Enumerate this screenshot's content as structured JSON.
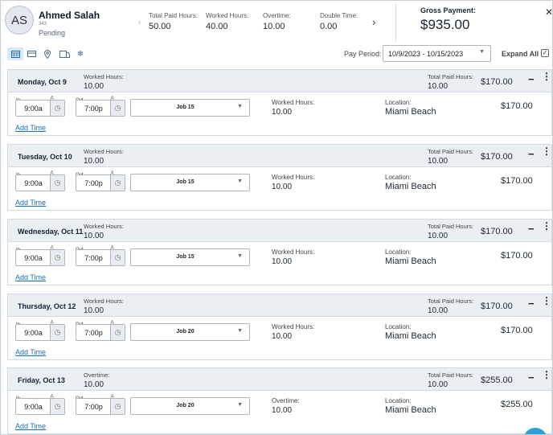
{
  "employee": {
    "initials": "AS",
    "name": "Ahmed Salah",
    "id": "343",
    "status": "Pending"
  },
  "summary": {
    "total_paid_hours_label": "Total Paid Hours:",
    "total_paid_hours": "50.00",
    "worked_hours_label": "Worked Hours:",
    "worked_hours": "40.00",
    "overtime_label": "Overtime:",
    "overtime": "10.00",
    "double_time_label": "Double Time:",
    "double_time": "0.00"
  },
  "gross": {
    "label": "Gross Payment:",
    "value": "$935.00"
  },
  "toolbar": {
    "icons": [
      "calendar-icon",
      "card-icon",
      "location-pin-icon",
      "transfer-icon",
      "snowflake-icon"
    ],
    "pay_period_label": "Pay Period:",
    "pay_period_value": "10/9/2023 - 10/15/2023",
    "expand_all_label": "Expand All",
    "expand_all_checked": true
  },
  "labels": {
    "in": "In",
    "out": "Out",
    "worked_hours": "Worked Hours:",
    "overtime": "Overtime:",
    "total_paid_hours": "Total Paid Hours:",
    "location": "Location:",
    "add_time": "Add Time"
  },
  "days": [
    {
      "title": "Monday, Oct 9",
      "header_label": "Worked Hours:",
      "header_hours": "10.00",
      "total_paid_hours": "10.00",
      "amount": "$170.00",
      "in": "9:00a",
      "out": "7:00p",
      "job": "Job 15",
      "entry_label": "Worked Hours:",
      "entry_hours": "10.00",
      "location": "Miami Beach",
      "entry_amount": "$170.00"
    },
    {
      "title": "Tuesday, Oct 10",
      "header_label": "Worked Hours:",
      "header_hours": "10.00",
      "total_paid_hours": "10.00",
      "amount": "$170.00",
      "in": "9:00a",
      "out": "7:00p",
      "job": "Job 15",
      "entry_label": "Worked Hours:",
      "entry_hours": "10.00",
      "location": "Miami Beach",
      "entry_amount": "$170.00"
    },
    {
      "title": "Wednesday, Oct 11",
      "header_label": "Worked Hours:",
      "header_hours": "10.00",
      "total_paid_hours": "10.00",
      "amount": "$170.00",
      "in": "9:00a",
      "out": "7:00p",
      "job": "Job 15",
      "entry_label": "Worked Hours:",
      "entry_hours": "10.00",
      "location": "Miami Beach",
      "entry_amount": "$170.00"
    },
    {
      "title": "Thursday, Oct 12",
      "header_label": "Worked Hours:",
      "header_hours": "10.00",
      "total_paid_hours": "10.00",
      "amount": "$170.00",
      "in": "9:00a",
      "out": "7:00p",
      "job": "Job 20",
      "entry_label": "Worked Hours:",
      "entry_hours": "10.00",
      "location": "Miami Beach",
      "entry_amount": "$170.00"
    },
    {
      "title": "Friday, Oct 13",
      "header_label": "Overtime:",
      "header_hours": "10.00",
      "total_paid_hours": "10.00",
      "amount": "$255.00",
      "in": "9:00a",
      "out": "7:00p",
      "job": "Job 20",
      "entry_label": "Overtime:",
      "entry_hours": "10.00",
      "location": "Miami Beach",
      "entry_amount": "$255.00"
    }
  ]
}
